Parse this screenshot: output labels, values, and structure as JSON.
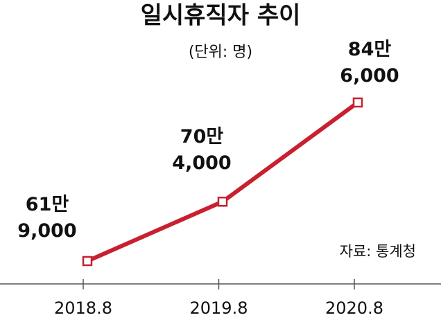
{
  "chart_data": {
    "type": "line",
    "title": "일시휴직자 추이",
    "subtitle": "(단위: 명)",
    "source": "자료: 통계청",
    "categories": [
      "2018.8",
      "2019.8",
      "2020.8"
    ],
    "values": [
      619000,
      704000,
      846000
    ],
    "value_labels": [
      "61만\n9,000",
      "70만\n4,000",
      "84만\n6,000"
    ],
    "color": "#c8202f"
  }
}
